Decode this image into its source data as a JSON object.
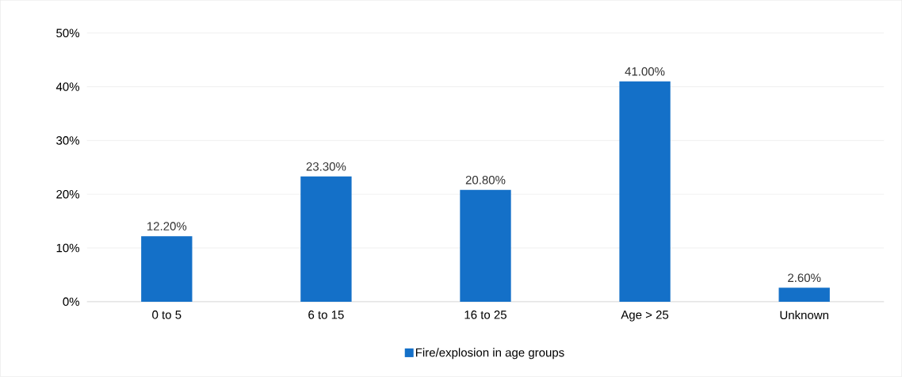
{
  "chart_data": {
    "type": "bar",
    "categories": [
      "0 to 5",
      "6 to 15",
      "16 to 25",
      "Age > 25",
      "Unknown"
    ],
    "series": [
      {
        "name": "Fire/explosion  in age groups",
        "color": "#1470c8",
        "values": [
          12.2,
          23.3,
          20.8,
          41.0,
          2.6
        ],
        "value_labels": [
          "12.20%",
          "23.30%",
          "20.80%",
          "41.00%",
          "2.60%"
        ]
      }
    ],
    "ylim": [
      0,
      50
    ],
    "yticks": [
      {
        "value": 0,
        "label": "0%"
      },
      {
        "value": 10,
        "label": "10%"
      },
      {
        "value": 20,
        "label": "20%"
      },
      {
        "value": 30,
        "label": "30%"
      },
      {
        "value": 40,
        "label": "40%"
      },
      {
        "value": 50,
        "label": "50%"
      }
    ],
    "grid": "y",
    "legend": "bottom"
  }
}
